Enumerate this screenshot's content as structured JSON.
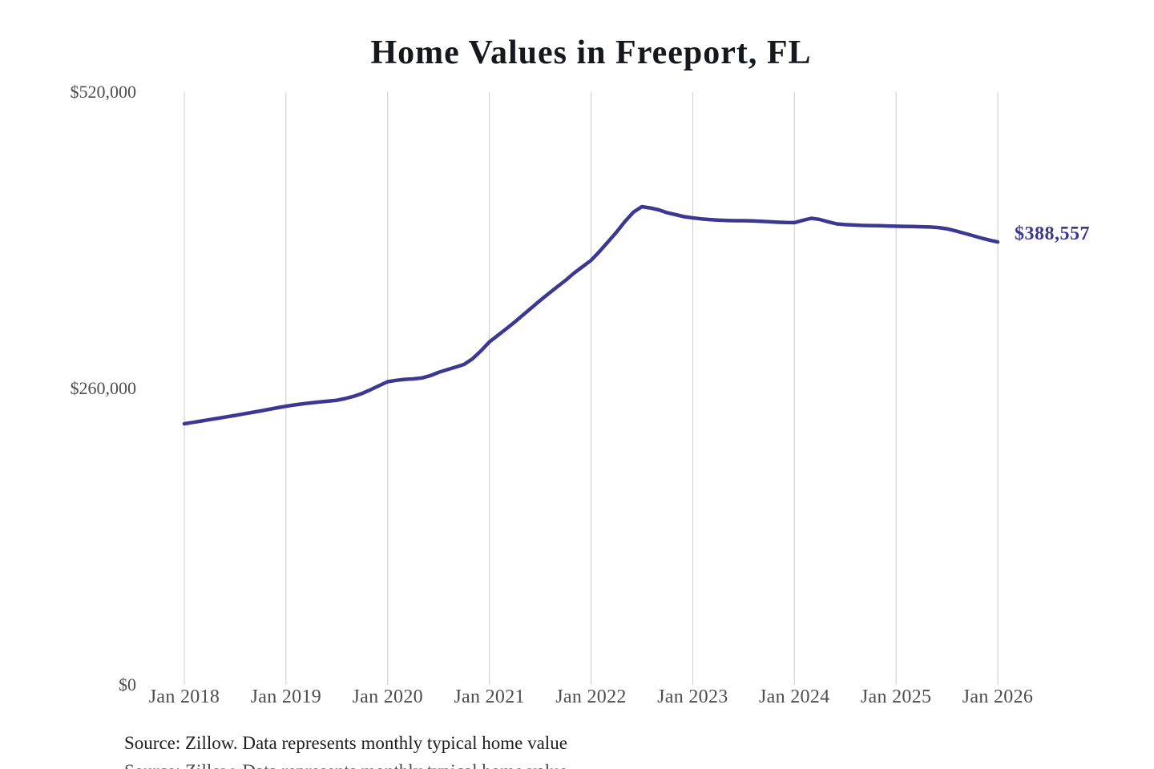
{
  "source_note": "Source: Zillow. Data represents monthly typical home value",
  "chart_data": {
    "type": "line",
    "title": "Home Values in Freeport, FL",
    "series_name": "Typical home value",
    "xlabel": "",
    "ylabel": "",
    "ylim": [
      0,
      520000
    ],
    "grid": "vertical-only",
    "gridline_color": "#cccccc",
    "line_color": "#3b3792",
    "legend": "none",
    "x_start": "2018-01",
    "x_end": "2026-01",
    "x_interval": "monthly",
    "x_tick_labels": [
      "Jan 2018",
      "Jan 2019",
      "Jan 2020",
      "Jan 2021",
      "Jan 2022",
      "Jan 2023",
      "Jan 2024",
      "Jan 2025",
      "Jan 2026"
    ],
    "y_tick_labels": [
      "$0",
      "$260,000",
      "$520,000"
    ],
    "y_tick_values": [
      0,
      260000,
      520000
    ],
    "final_value_label": "$388,557",
    "final_value": 388557,
    "peak": {
      "x": "2022-07",
      "value": 419500
    },
    "values": [
      229100,
      230300,
      231500,
      232700,
      233900,
      235200,
      236400,
      237700,
      239000,
      240300,
      241700,
      243100,
      244500,
      245600,
      246600,
      247400,
      248200,
      248900,
      249700,
      251200,
      253200,
      255700,
      259000,
      262500,
      266000,
      267200,
      268000,
      268400,
      269200,
      271200,
      274100,
      276500,
      278700,
      281100,
      286000,
      293000,
      300800,
      306600,
      312400,
      318300,
      324700,
      331000,
      337300,
      343300,
      349200,
      354900,
      361300,
      366900,
      372400,
      380200,
      388600,
      397100,
      406500,
      414700,
      419500,
      418400,
      416700,
      414200,
      412500,
      410700,
      409700,
      408800,
      408200,
      407700,
      407400,
      407200,
      407200,
      407100,
      406700,
      406300,
      405900,
      405600,
      405500,
      407500,
      409300,
      408300,
      406200,
      404400,
      403800,
      403400,
      403100,
      402900,
      402800,
      402600,
      402400,
      402200,
      402100,
      401900,
      401700,
      401200,
      400100,
      398300,
      396300,
      394200,
      392100,
      390200,
      388557
    ]
  }
}
